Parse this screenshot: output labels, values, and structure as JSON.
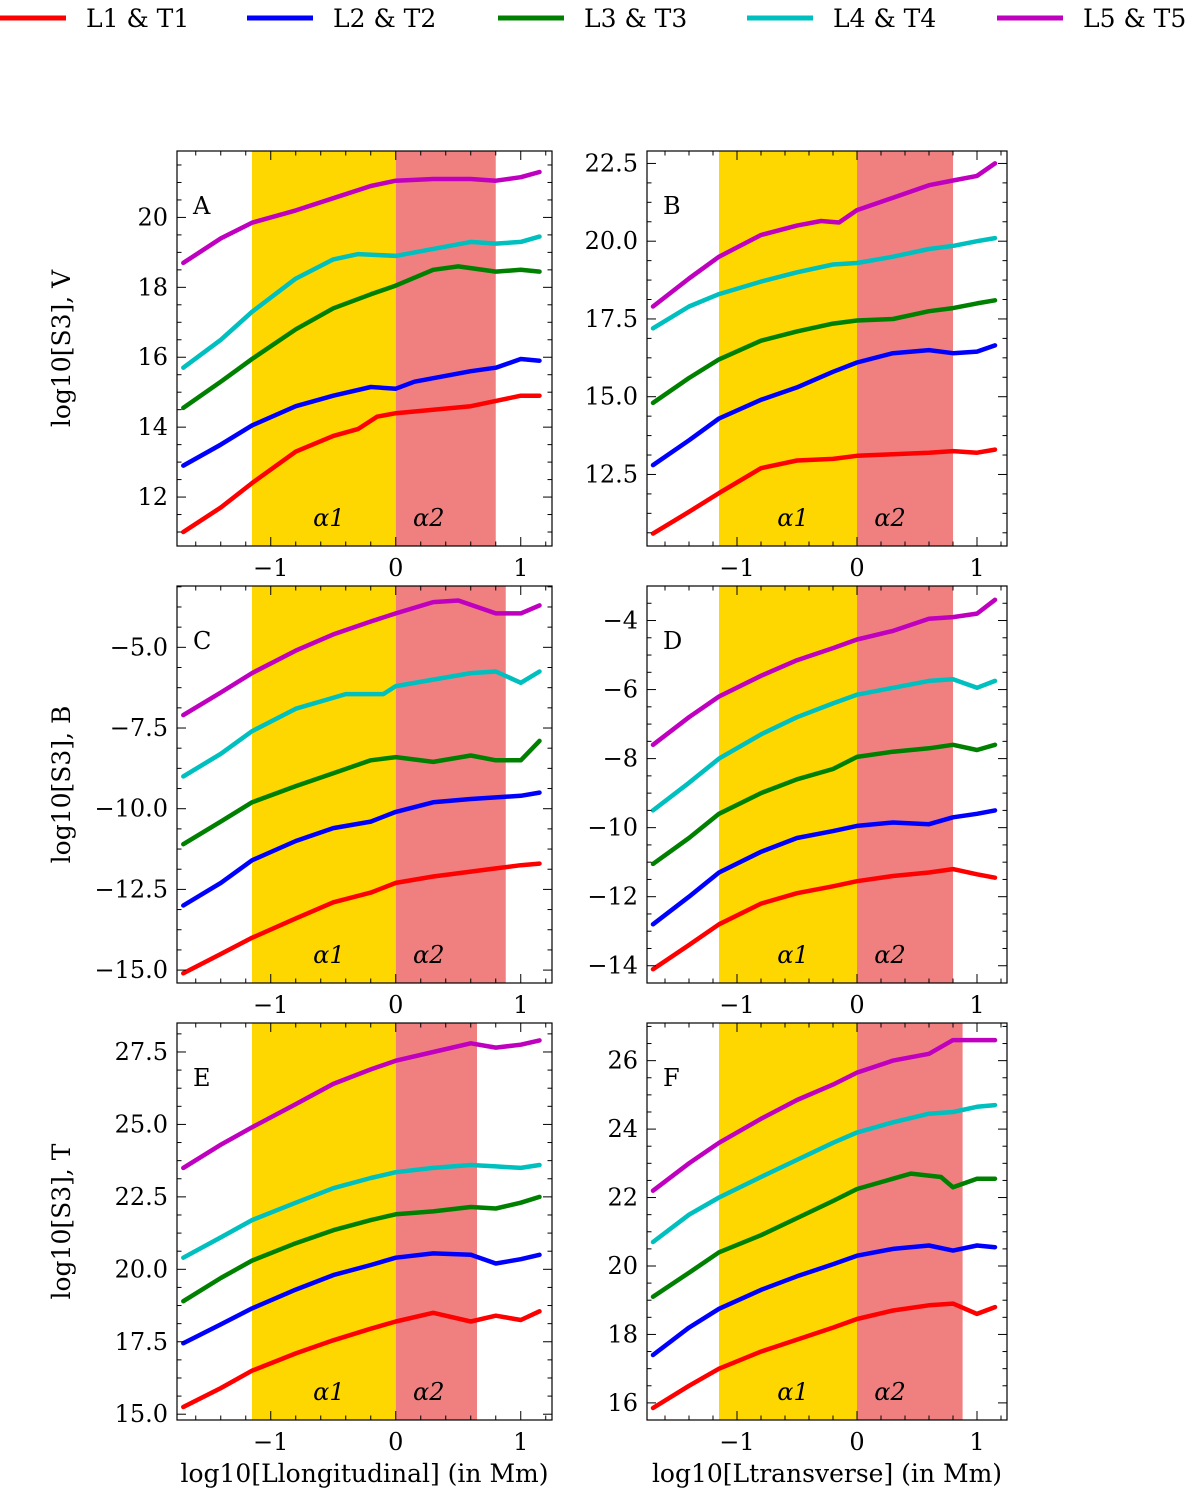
{
  "legend": [
    {
      "label": "L1 & T1",
      "color": "#ff0000"
    },
    {
      "label": "L2 & T2",
      "color": "#0000ff"
    },
    {
      "label": "L3 & T3",
      "color": "#008000"
    },
    {
      "label": "L4 & T4",
      "color": "#00bfbf"
    },
    {
      "label": "L5 & T5",
      "color": "#bf00bf"
    }
  ],
  "band_colors": {
    "alpha1": "#ffd700",
    "alpha2": "#f08080"
  },
  "row_ylabels": [
    "log10[S3], V",
    "log10[S3], B",
    "log10[S3], T"
  ],
  "col_xlabels": [
    "log10[Llongitudinal] (in Mm)",
    "log10[Ltransverse] (in Mm)"
  ],
  "chart_data": [
    {
      "type": "line",
      "panel": "A",
      "xlim": [
        -1.75,
        1.25
      ],
      "ylim": [
        10.6,
        21.9
      ],
      "yticks": [
        12,
        14,
        16,
        18,
        20
      ],
      "xticks": [
        -1,
        0,
        1
      ],
      "band1": [
        -1.15,
        0
      ],
      "band2": [
        0,
        0.8
      ],
      "band_labels": [
        "α1",
        "α2"
      ],
      "series": [
        {
          "name": "L1 & T1",
          "x": [
            -1.7,
            -1.4,
            -1.15,
            -0.8,
            -0.5,
            -0.3,
            -0.15,
            0,
            0.3,
            0.6,
            0.8,
            1.0,
            1.15
          ],
          "y": [
            11.0,
            11.7,
            12.4,
            13.3,
            13.75,
            13.95,
            14.3,
            14.4,
            14.5,
            14.6,
            14.75,
            14.9,
            14.9
          ]
        },
        {
          "name": "L2 & T2",
          "x": [
            -1.7,
            -1.4,
            -1.15,
            -0.8,
            -0.5,
            -0.2,
            0,
            0.15,
            0.3,
            0.6,
            0.8,
            1.0,
            1.15
          ],
          "y": [
            12.9,
            13.5,
            14.05,
            14.6,
            14.9,
            15.15,
            15.1,
            15.3,
            15.4,
            15.6,
            15.7,
            15.95,
            15.9
          ]
        },
        {
          "name": "L3 & T3",
          "x": [
            -1.7,
            -1.4,
            -1.15,
            -0.8,
            -0.5,
            -0.2,
            0,
            0.3,
            0.5,
            0.8,
            1.0,
            1.15
          ],
          "y": [
            14.55,
            15.3,
            15.95,
            16.8,
            17.4,
            17.8,
            18.05,
            18.5,
            18.6,
            18.45,
            18.5,
            18.45
          ]
        },
        {
          "name": "L4 & T4",
          "x": [
            -1.7,
            -1.4,
            -1.15,
            -0.8,
            -0.5,
            -0.3,
            0,
            0.3,
            0.6,
            0.8,
            1.0,
            1.15
          ],
          "y": [
            15.7,
            16.5,
            17.3,
            18.25,
            18.8,
            18.95,
            18.9,
            19.1,
            19.3,
            19.25,
            19.3,
            19.45
          ]
        },
        {
          "name": "L5 & T5",
          "x": [
            -1.7,
            -1.4,
            -1.15,
            -0.8,
            -0.5,
            -0.2,
            0,
            0.3,
            0.6,
            0.8,
            1.0,
            1.15
          ],
          "y": [
            18.7,
            19.4,
            19.85,
            20.2,
            20.55,
            20.9,
            21.05,
            21.1,
            21.1,
            21.05,
            21.15,
            21.3
          ]
        }
      ]
    },
    {
      "type": "line",
      "panel": "B",
      "xlim": [
        -1.75,
        1.25
      ],
      "ylim": [
        10.2,
        22.9
      ],
      "yticks": [
        12.5,
        15.0,
        17.5,
        20.0,
        22.5
      ],
      "xticks": [
        -1,
        0,
        1
      ],
      "band1": [
        -1.15,
        0
      ],
      "band2": [
        0,
        0.8
      ],
      "band_labels": [
        "α1",
        "α2"
      ],
      "series": [
        {
          "name": "L1 & T1",
          "x": [
            -1.7,
            -1.4,
            -1.15,
            -0.8,
            -0.5,
            -0.2,
            0,
            0.3,
            0.6,
            0.8,
            1.0,
            1.15
          ],
          "y": [
            10.6,
            11.3,
            11.9,
            12.7,
            12.95,
            13.0,
            13.1,
            13.15,
            13.2,
            13.25,
            13.2,
            13.3
          ]
        },
        {
          "name": "L2 & T2",
          "x": [
            -1.7,
            -1.4,
            -1.15,
            -0.8,
            -0.5,
            -0.2,
            0,
            0.3,
            0.6,
            0.8,
            1.0,
            1.15
          ],
          "y": [
            12.8,
            13.6,
            14.3,
            14.9,
            15.3,
            15.8,
            16.1,
            16.4,
            16.5,
            16.4,
            16.45,
            16.65
          ]
        },
        {
          "name": "L3 & T3",
          "x": [
            -1.7,
            -1.4,
            -1.15,
            -0.8,
            -0.5,
            -0.2,
            0,
            0.3,
            0.6,
            0.8,
            1.0,
            1.15
          ],
          "y": [
            14.8,
            15.6,
            16.2,
            16.8,
            17.1,
            17.35,
            17.45,
            17.5,
            17.75,
            17.85,
            18.0,
            18.1
          ]
        },
        {
          "name": "L4 & T4",
          "x": [
            -1.7,
            -1.4,
            -1.15,
            -0.8,
            -0.5,
            -0.2,
            0,
            0.3,
            0.6,
            0.8,
            1.0,
            1.15
          ],
          "y": [
            17.2,
            17.9,
            18.3,
            18.7,
            19.0,
            19.25,
            19.3,
            19.5,
            19.75,
            19.85,
            20.0,
            20.1
          ]
        },
        {
          "name": "L5 & T5",
          "x": [
            -1.7,
            -1.4,
            -1.15,
            -0.8,
            -0.5,
            -0.3,
            -0.15,
            0,
            0.3,
            0.6,
            0.8,
            1.0,
            1.15
          ],
          "y": [
            17.9,
            18.8,
            19.5,
            20.2,
            20.5,
            20.65,
            20.6,
            21.0,
            21.4,
            21.8,
            21.95,
            22.1,
            22.5
          ]
        }
      ]
    },
    {
      "type": "line",
      "panel": "C",
      "xlim": [
        -1.75,
        1.25
      ],
      "ylim": [
        -15.4,
        -3.1
      ],
      "yticks": [
        -15.0,
        -12.5,
        -10.0,
        -7.5,
        -5.0
      ],
      "xticks": [
        -1,
        0,
        1
      ],
      "band1": [
        -1.15,
        0
      ],
      "band2": [
        0,
        0.88
      ],
      "band_labels": [
        "α1",
        "α2"
      ],
      "series": [
        {
          "name": "L1 & T1",
          "x": [
            -1.7,
            -1.4,
            -1.15,
            -0.8,
            -0.5,
            -0.2,
            0,
            0.3,
            0.6,
            0.8,
            1.0,
            1.15
          ],
          "y": [
            -15.1,
            -14.5,
            -14.0,
            -13.4,
            -12.9,
            -12.6,
            -12.3,
            -12.1,
            -11.95,
            -11.85,
            -11.75,
            -11.7
          ]
        },
        {
          "name": "L2 & T2",
          "x": [
            -1.7,
            -1.4,
            -1.15,
            -0.8,
            -0.5,
            -0.2,
            0,
            0.3,
            0.6,
            0.8,
            1.0,
            1.15
          ],
          "y": [
            -13.0,
            -12.3,
            -11.6,
            -11.0,
            -10.6,
            -10.4,
            -10.1,
            -9.8,
            -9.7,
            -9.65,
            -9.6,
            -9.5
          ]
        },
        {
          "name": "L3 & T3",
          "x": [
            -1.7,
            -1.4,
            -1.15,
            -0.8,
            -0.5,
            -0.2,
            0,
            0.3,
            0.6,
            0.8,
            1.0,
            1.15
          ],
          "y": [
            -11.1,
            -10.4,
            -9.8,
            -9.3,
            -8.9,
            -8.5,
            -8.4,
            -8.55,
            -8.35,
            -8.5,
            -8.5,
            -7.9
          ]
        },
        {
          "name": "L4 & T4",
          "x": [
            -1.7,
            -1.4,
            -1.15,
            -0.8,
            -0.4,
            -0.1,
            0,
            0.3,
            0.6,
            0.8,
            1.0,
            1.15
          ],
          "y": [
            -9.0,
            -8.3,
            -7.6,
            -6.9,
            -6.45,
            -6.45,
            -6.2,
            -6.0,
            -5.8,
            -5.75,
            -6.1,
            -5.75
          ]
        },
        {
          "name": "L5 & T5",
          "x": [
            -1.7,
            -1.4,
            -1.15,
            -0.8,
            -0.5,
            -0.2,
            0,
            0.3,
            0.5,
            0.8,
            1.0,
            1.15
          ],
          "y": [
            -7.1,
            -6.4,
            -5.8,
            -5.1,
            -4.6,
            -4.2,
            -3.95,
            -3.6,
            -3.55,
            -3.95,
            -3.95,
            -3.7
          ]
        }
      ]
    },
    {
      "type": "line",
      "panel": "D",
      "xlim": [
        -1.75,
        1.25
      ],
      "ylim": [
        -14.5,
        -3.0
      ],
      "yticks": [
        -14,
        -12,
        -10,
        -8,
        -6,
        -4
      ],
      "xticks": [
        -1,
        0,
        1
      ],
      "band1": [
        -1.15,
        0
      ],
      "band2": [
        0,
        0.8
      ],
      "band_labels": [
        "α1",
        "α2"
      ],
      "series": [
        {
          "name": "L1 & T1",
          "x": [
            -1.7,
            -1.4,
            -1.15,
            -0.8,
            -0.5,
            -0.2,
            0,
            0.3,
            0.6,
            0.8,
            1.0,
            1.15
          ],
          "y": [
            -14.1,
            -13.4,
            -12.8,
            -12.2,
            -11.9,
            -11.7,
            -11.55,
            -11.4,
            -11.3,
            -11.2,
            -11.35,
            -11.45
          ]
        },
        {
          "name": "L2 & T2",
          "x": [
            -1.7,
            -1.4,
            -1.15,
            -0.8,
            -0.5,
            -0.2,
            0,
            0.3,
            0.6,
            0.8,
            1.0,
            1.15
          ],
          "y": [
            -12.8,
            -12.0,
            -11.3,
            -10.7,
            -10.3,
            -10.1,
            -9.95,
            -9.85,
            -9.9,
            -9.7,
            -9.6,
            -9.5
          ]
        },
        {
          "name": "L3 & T3",
          "x": [
            -1.7,
            -1.4,
            -1.15,
            -0.8,
            -0.5,
            -0.2,
            0,
            0.3,
            0.6,
            0.8,
            1.0,
            1.15
          ],
          "y": [
            -11.05,
            -10.3,
            -9.6,
            -9.0,
            -8.6,
            -8.3,
            -7.95,
            -7.8,
            -7.7,
            -7.6,
            -7.75,
            -7.6
          ]
        },
        {
          "name": "L4 & T4",
          "x": [
            -1.7,
            -1.4,
            -1.15,
            -0.8,
            -0.5,
            -0.2,
            0,
            0.3,
            0.6,
            0.8,
            1.0,
            1.15
          ],
          "y": [
            -9.5,
            -8.7,
            -8.0,
            -7.3,
            -6.8,
            -6.4,
            -6.15,
            -5.95,
            -5.75,
            -5.7,
            -5.95,
            -5.75
          ]
        },
        {
          "name": "L5 & T5",
          "x": [
            -1.7,
            -1.4,
            -1.15,
            -0.8,
            -0.5,
            -0.2,
            0,
            0.3,
            0.6,
            0.8,
            1.0,
            1.15
          ],
          "y": [
            -7.6,
            -6.8,
            -6.2,
            -5.6,
            -5.15,
            -4.8,
            -4.55,
            -4.3,
            -3.95,
            -3.9,
            -3.8,
            -3.4
          ]
        }
      ]
    },
    {
      "type": "line",
      "panel": "E",
      "xlim": [
        -1.75,
        1.25
      ],
      "ylim": [
        14.8,
        28.5
      ],
      "yticks": [
        15.0,
        17.5,
        20.0,
        22.5,
        25.0,
        27.5
      ],
      "xticks": [
        -1,
        0,
        1
      ],
      "band1": [
        -1.15,
        0
      ],
      "band2": [
        0,
        0.65
      ],
      "band_labels": [
        "α1",
        "α2"
      ],
      "series": [
        {
          "name": "L1 & T1",
          "x": [
            -1.7,
            -1.4,
            -1.15,
            -0.8,
            -0.5,
            -0.2,
            0,
            0.3,
            0.6,
            0.8,
            1.0,
            1.15
          ],
          "y": [
            15.25,
            15.9,
            16.5,
            17.1,
            17.55,
            17.95,
            18.2,
            18.5,
            18.2,
            18.4,
            18.25,
            18.55
          ]
        },
        {
          "name": "L2 & T2",
          "x": [
            -1.7,
            -1.4,
            -1.15,
            -0.8,
            -0.5,
            -0.2,
            0,
            0.3,
            0.6,
            0.8,
            1.0,
            1.15
          ],
          "y": [
            17.45,
            18.1,
            18.65,
            19.3,
            19.8,
            20.15,
            20.4,
            20.55,
            20.5,
            20.2,
            20.35,
            20.5
          ]
        },
        {
          "name": "L3 & T3",
          "x": [
            -1.7,
            -1.4,
            -1.15,
            -0.8,
            -0.5,
            -0.2,
            0,
            0.3,
            0.6,
            0.8,
            1.0,
            1.15
          ],
          "y": [
            18.9,
            19.7,
            20.3,
            20.9,
            21.35,
            21.7,
            21.9,
            22.0,
            22.15,
            22.1,
            22.3,
            22.5
          ]
        },
        {
          "name": "L4 & T4",
          "x": [
            -1.7,
            -1.4,
            -1.15,
            -0.8,
            -0.5,
            -0.2,
            0,
            0.3,
            0.6,
            0.8,
            1.0,
            1.15
          ],
          "y": [
            20.4,
            21.1,
            21.7,
            22.3,
            22.8,
            23.15,
            23.35,
            23.5,
            23.6,
            23.55,
            23.5,
            23.6
          ]
        },
        {
          "name": "L5 & T5",
          "x": [
            -1.7,
            -1.4,
            -1.15,
            -0.8,
            -0.5,
            -0.2,
            0,
            0.3,
            0.6,
            0.8,
            1.0,
            1.15
          ],
          "y": [
            23.5,
            24.3,
            24.9,
            25.7,
            26.4,
            26.9,
            27.2,
            27.5,
            27.8,
            27.65,
            27.75,
            27.9
          ]
        }
      ]
    },
    {
      "type": "line",
      "panel": "F",
      "xlim": [
        -1.75,
        1.25
      ],
      "ylim": [
        15.5,
        27.1
      ],
      "yticks": [
        16,
        18,
        20,
        22,
        24,
        26
      ],
      "xticks": [
        -1,
        0,
        1
      ],
      "band1": [
        -1.15,
        0
      ],
      "band2": [
        0,
        0.88
      ],
      "band_labels": [
        "α1",
        "α2"
      ],
      "series": [
        {
          "name": "L1 & T1",
          "x": [
            -1.7,
            -1.4,
            -1.15,
            -0.8,
            -0.5,
            -0.2,
            0,
            0.3,
            0.6,
            0.8,
            1.0,
            1.15
          ],
          "y": [
            15.85,
            16.5,
            17.0,
            17.5,
            17.85,
            18.2,
            18.45,
            18.7,
            18.85,
            18.9,
            18.6,
            18.8
          ]
        },
        {
          "name": "L2 & T2",
          "x": [
            -1.7,
            -1.4,
            -1.15,
            -0.8,
            -0.5,
            -0.2,
            0,
            0.3,
            0.6,
            0.8,
            1.0,
            1.15
          ],
          "y": [
            17.4,
            18.2,
            18.75,
            19.3,
            19.7,
            20.05,
            20.3,
            20.5,
            20.6,
            20.45,
            20.6,
            20.55
          ]
        },
        {
          "name": "L3 & T3",
          "x": [
            -1.7,
            -1.4,
            -1.15,
            -0.8,
            -0.5,
            -0.2,
            0,
            0.3,
            0.45,
            0.7,
            0.8,
            1.0,
            1.15
          ],
          "y": [
            19.1,
            19.8,
            20.4,
            20.9,
            21.4,
            21.9,
            22.25,
            22.55,
            22.7,
            22.6,
            22.3,
            22.55,
            22.55
          ]
        },
        {
          "name": "L4 & T4",
          "x": [
            -1.7,
            -1.4,
            -1.15,
            -0.8,
            -0.5,
            -0.2,
            0,
            0.3,
            0.6,
            0.8,
            1.0,
            1.15
          ],
          "y": [
            20.7,
            21.5,
            22.0,
            22.6,
            23.1,
            23.6,
            23.9,
            24.2,
            24.45,
            24.5,
            24.65,
            24.7
          ]
        },
        {
          "name": "L5 & T5",
          "x": [
            -1.7,
            -1.4,
            -1.15,
            -0.8,
            -0.5,
            -0.2,
            0,
            0.3,
            0.6,
            0.8,
            1.0,
            1.15
          ],
          "y": [
            22.2,
            23.0,
            23.6,
            24.3,
            24.85,
            25.3,
            25.65,
            26.0,
            26.2,
            26.6,
            26.6,
            26.6
          ]
        }
      ]
    }
  ]
}
